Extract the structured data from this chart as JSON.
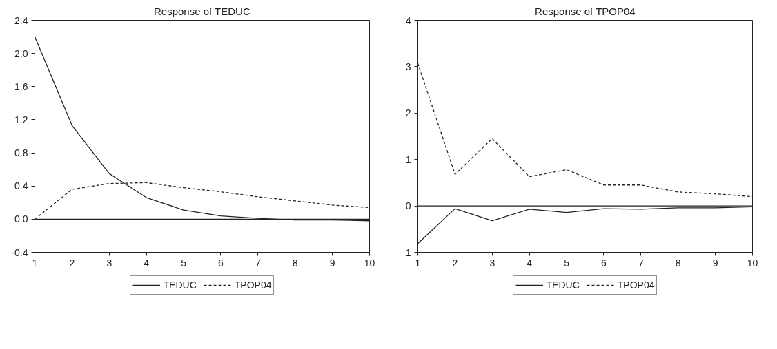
{
  "chart_data": [
    {
      "type": "line",
      "title": "Response of TEDUC",
      "x": [
        1,
        2,
        3,
        4,
        5,
        6,
        7,
        8,
        9,
        10
      ],
      "xlim": [
        1,
        10
      ],
      "xticks": [
        1,
        2,
        3,
        4,
        5,
        6,
        7,
        8,
        9,
        10
      ],
      "ylim": [
        -0.4,
        2.4
      ],
      "yticks": [
        {
          "value": -0.4,
          "label": "-0.4"
        },
        {
          "value": 0,
          "label": "0.0"
        },
        {
          "value": 0.4,
          "label": "0.4"
        },
        {
          "value": 0.8,
          "label": "0.8"
        },
        {
          "value": 1.2,
          "label": "1.2"
        },
        {
          "value": 1.6,
          "label": "1.6"
        },
        {
          "value": 2,
          "label": "2.0"
        },
        {
          "value": 2.4,
          "label": "2.4"
        }
      ],
      "grid": false,
      "legend": "bottom",
      "marker": "none",
      "ref_lines": [
        {
          "axis": "y",
          "value": 0,
          "color": "#222222"
        }
      ],
      "series": [
        {
          "name": "TEDUC",
          "color": "#222222",
          "line_style": "solid",
          "values": [
            2.2,
            1.13,
            0.55,
            0.26,
            0.11,
            0.04,
            0.01,
            -0.01,
            -0.01,
            -0.02
          ]
        },
        {
          "name": "TPOP04",
          "color": "#222222",
          "line_style": "dashed",
          "values": [
            0,
            0.36,
            0.43,
            0.44,
            0.38,
            0.33,
            0.27,
            0.22,
            0.17,
            0.14
          ]
        }
      ]
    },
    {
      "type": "line",
      "title": "Response of TPOP04",
      "x": [
        1,
        2,
        3,
        4,
        5,
        6,
        7,
        8,
        9,
        10
      ],
      "xlim": [
        1,
        10
      ],
      "xticks": [
        1,
        2,
        3,
        4,
        5,
        6,
        7,
        8,
        9,
        10
      ],
      "ylim": [
        -1,
        4
      ],
      "yticks": [
        -1,
        0,
        1,
        2,
        3,
        4
      ],
      "grid": false,
      "legend": "bottom",
      "marker": "none",
      "ref_lines": [
        {
          "axis": "y",
          "value": 0,
          "color": "#222222"
        }
      ],
      "series": [
        {
          "name": "TEDUC",
          "color": "#222222",
          "line_style": "solid",
          "values": [
            -0.81,
            -0.06,
            -0.32,
            -0.07,
            -0.14,
            -0.06,
            -0.07,
            -0.04,
            -0.04,
            -0.02
          ]
        },
        {
          "name": "TPOP04",
          "color": "#222222",
          "line_style": "dashed",
          "values": [
            3.07,
            0.68,
            1.45,
            0.63,
            0.78,
            0.45,
            0.45,
            0.3,
            0.26,
            0.2
          ]
        }
      ]
    }
  ]
}
